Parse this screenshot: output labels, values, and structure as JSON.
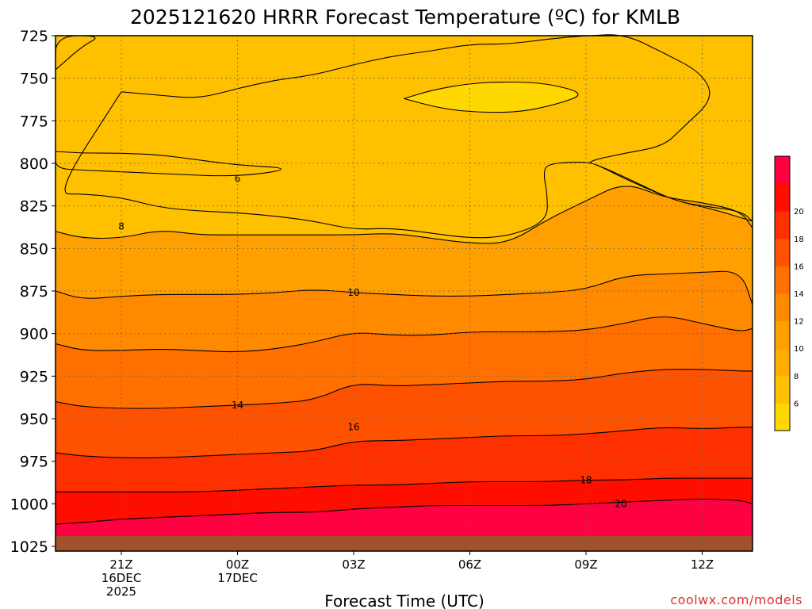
{
  "chart_data": {
    "type": "contour",
    "title": "2025121620 HRRR Forecast Temperature (ºC) for KMLB",
    "xlabel": "Forecast Time (UTC)",
    "ylabel": "",
    "credit": "coolwx.com/models",
    "y_axis": {
      "inverted": true,
      "range": [
        725,
        1025
      ],
      "ticks": [
        725,
        750,
        775,
        800,
        825,
        850,
        875,
        900,
        925,
        950,
        975,
        1000,
        1025
      ],
      "grid": true
    },
    "x_axis": {
      "range_hours": [
        -0.7,
        17.3
      ],
      "ticks": [
        {
          "hour": 1,
          "line1": "21Z",
          "line2": "16DEC",
          "line3": "2025"
        },
        {
          "hour": 4,
          "line1": "00Z",
          "line2": "17DEC",
          "line3": ""
        },
        {
          "hour": 7,
          "line1": "03Z",
          "line2": "",
          "line3": ""
        },
        {
          "hour": 10,
          "line1": "06Z",
          "line2": "",
          "line3": ""
        },
        {
          "hour": 13,
          "line1": "09Z",
          "line2": "",
          "line3": ""
        },
        {
          "hour": 16,
          "line1": "12Z",
          "line2": "",
          "line3": ""
        }
      ],
      "grid": true
    },
    "colorbar": {
      "levels": [
        4,
        6,
        8,
        10,
        12,
        14,
        16,
        18,
        20,
        22
      ],
      "tick_labels": [
        "6",
        "8",
        "10",
        "12",
        "14",
        "16",
        "18",
        "20"
      ],
      "colors": [
        "#ffd800",
        "#ffc000",
        "#ffae00",
        "#ff9f00",
        "#ff8a00",
        "#ff7000",
        "#ff5200",
        "#ff3000",
        "#ff0e00",
        "#ff0040"
      ]
    },
    "surface_color": "#a0522d",
    "surface_pressure_hpa": 1019,
    "x_hours": [
      -0.7,
      0,
      1,
      2,
      3,
      4,
      5,
      6,
      7,
      8,
      9,
      10,
      11,
      12,
      13,
      14,
      15,
      16,
      17,
      17.3
    ],
    "contours": [
      {
        "level": 20,
        "label": "20",
        "label_at": [
          13.9,
          1000
        ],
        "p": [
          1012,
          1011,
          1009,
          1008,
          1007,
          1006,
          1005,
          1005,
          1003,
          1002,
          1001,
          1001,
          1001,
          1001,
          1000,
          999,
          998,
          997,
          998,
          1000
        ]
      },
      {
        "level": 18,
        "label": "18",
        "label_at": [
          13.0,
          986
        ],
        "p": [
          993,
          993,
          993,
          993,
          993,
          992,
          991,
          990,
          989,
          989,
          988,
          987,
          987,
          987,
          986,
          986,
          985,
          985,
          985,
          985
        ]
      },
      {
        "level": 16,
        "label": "16",
        "label_at": [
          7.0,
          955
        ],
        "p": [
          970,
          972,
          973,
          973,
          972,
          971,
          970,
          969,
          963,
          963,
          962,
          961,
          960,
          960,
          959,
          957,
          955,
          956,
          955,
          955
        ]
      },
      {
        "level": 14,
        "label": "14",
        "label_at": [
          4.0,
          942
        ],
        "p": [
          940,
          943,
          944,
          944,
          943,
          942,
          941,
          939,
          929,
          931,
          930,
          929,
          928,
          928,
          927,
          923,
          921,
          921,
          922,
          922
        ]
      },
      {
        "level": 12,
        "label": "",
        "label_at": null,
        "p": [
          906,
          910,
          910,
          909,
          910,
          911,
          909,
          905,
          899,
          901,
          901,
          899,
          899,
          899,
          898,
          894,
          889,
          894,
          899,
          897
        ]
      },
      {
        "level": 10,
        "label": "10",
        "label_at": [
          7.0,
          876
        ],
        "p": [
          875,
          880,
          878,
          877,
          877,
          877,
          876,
          874,
          876,
          877,
          878,
          878,
          877,
          876,
          874,
          866,
          865,
          864,
          863,
          883
        ]
      },
      {
        "level": 8,
        "label": "8",
        "label_at": [
          1.0,
          837
        ],
        "p": [
          840,
          844,
          844,
          839,
          842,
          842,
          842,
          842,
          842,
          841,
          844,
          847,
          847,
          833,
          822,
          811,
          820,
          823,
          828,
          838
        ]
      },
      {
        "level": 6,
        "label": "6",
        "label_at": [
          4.0,
          809
        ],
        "closed": true,
        "outline": [
          [
            -0.7,
            793
          ],
          [
            0,
            794
          ],
          [
            1,
            794
          ],
          [
            2,
            795
          ],
          [
            3,
            798
          ],
          [
            4,
            801
          ],
          [
            5.5,
            803
          ],
          [
            4,
            808
          ],
          [
            2,
            806
          ],
          [
            0,
            804
          ],
          [
            -0.7,
            803
          ]
        ]
      },
      {
        "level": 6,
        "label": "",
        "label_at": null,
        "closed": true,
        "outline": [
          [
            -0.7,
            745
          ],
          [
            0,
            731
          ],
          [
            0.5,
            725
          ],
          [
            -0.7,
            725
          ]
        ]
      },
      {
        "level": 6,
        "label": "",
        "label_at": null,
        "closed": true,
        "outline": [
          [
            1,
            758
          ],
          [
            2,
            760
          ],
          [
            3,
            762
          ],
          [
            4,
            756
          ],
          [
            5,
            751
          ],
          [
            6,
            748
          ],
          [
            7,
            742
          ],
          [
            8,
            737
          ],
          [
            9,
            734
          ],
          [
            10,
            730
          ],
          [
            11,
            730
          ],
          [
            12,
            727
          ],
          [
            13,
            725
          ],
          [
            14,
            724
          ],
          [
            15,
            735
          ],
          [
            16,
            747
          ],
          [
            16.3,
            762
          ],
          [
            15.5,
            779
          ],
          [
            15,
            790
          ],
          [
            14,
            794
          ],
          [
            13,
            799
          ],
          [
            13.3,
            801
          ],
          [
            14,
            808
          ],
          [
            15,
            819
          ],
          [
            15.5,
            823
          ],
          [
            16,
            825
          ],
          [
            17,
            828
          ],
          [
            17.3,
            834
          ],
          [
            17.3,
            834
          ],
          [
            16.3,
            827
          ],
          [
            15.5,
            823
          ],
          [
            15,
            819
          ],
          [
            14,
            809
          ],
          [
            13.3,
            801
          ],
          [
            13,
            799
          ],
          [
            12,
            800
          ],
          [
            11.9,
            806
          ],
          [
            12,
            818
          ],
          [
            12,
            834
          ],
          [
            11,
            843
          ],
          [
            10,
            844
          ],
          [
            9,
            841
          ],
          [
            8,
            838
          ],
          [
            7,
            839
          ],
          [
            6,
            834
          ],
          [
            5,
            831
          ],
          [
            4,
            829
          ],
          [
            3,
            828
          ],
          [
            2,
            826
          ],
          [
            1,
            820
          ],
          [
            0,
            818
          ],
          [
            -0.7,
            818
          ]
        ]
      },
      {
        "level": 4,
        "label": "",
        "label_at": null,
        "closed": true,
        "outline": [
          [
            8.3,
            762
          ],
          [
            9,
            757
          ],
          [
            10,
            753
          ],
          [
            11,
            752
          ],
          [
            12,
            753
          ],
          [
            13,
            759
          ],
          [
            12.3,
            765
          ],
          [
            11.3,
            770
          ],
          [
            10.2,
            770
          ],
          [
            9.3,
            768
          ]
        ]
      }
    ]
  }
}
